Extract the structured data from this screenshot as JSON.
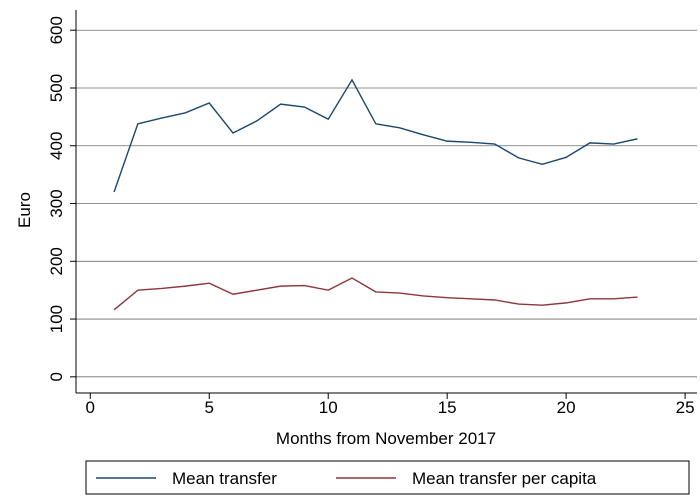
{
  "chart_data": {
    "type": "line",
    "x_label": "Months from November 2017",
    "y_label": "Euro",
    "x": [
      1,
      2,
      3,
      4,
      5,
      6,
      7,
      8,
      9,
      10,
      11,
      12,
      13,
      14,
      15,
      16,
      17,
      18,
      19,
      20,
      21,
      22,
      23
    ],
    "series": [
      {
        "name": "Mean transfer",
        "color": "#1a476f",
        "values": [
          320,
          438,
          448,
          457,
          474,
          422,
          443,
          472,
          467,
          446,
          514,
          438,
          431,
          419,
          408,
          406,
          403,
          379,
          368,
          380,
          405,
          403,
          412
        ]
      },
      {
        "name": "Mean transfer per capita",
        "color": "#90353b",
        "values": [
          116,
          150,
          153,
          157,
          162,
          143,
          150,
          157,
          158,
          150,
          171,
          147,
          145,
          140,
          137,
          135,
          133,
          126,
          124,
          128,
          135,
          135,
          138
        ]
      }
    ],
    "xlim": [
      -0.6,
      25.5
    ],
    "xticks": [
      0,
      5,
      10,
      15,
      20,
      25
    ],
    "ylim": [
      -28,
      635
    ],
    "yticks": [
      0,
      100,
      200,
      300,
      400,
      500,
      600
    ],
    "grid": true,
    "legend": "bottom"
  }
}
